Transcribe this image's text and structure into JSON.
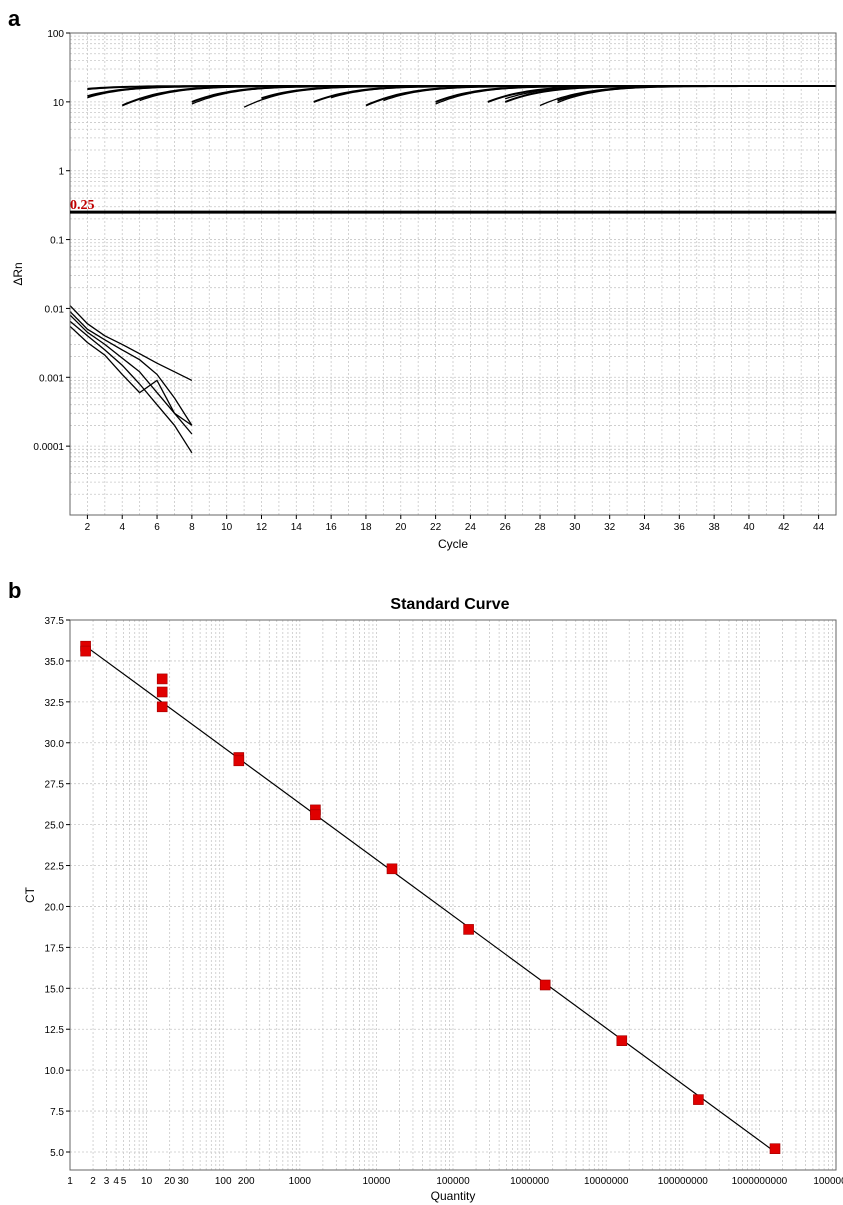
{
  "chart_data": [
    {
      "panel": "a",
      "type": "line",
      "title": "",
      "xlabel": "Cycle",
      "ylabel": "ΔRn",
      "xlim": [
        1,
        45
      ],
      "ylim": [
        1e-05,
        100
      ],
      "yscale": "log",
      "x_ticks": [
        "2",
        "4",
        "6",
        "8",
        "10",
        "12",
        "14",
        "16",
        "18",
        "20",
        "22",
        "24",
        "26",
        "28",
        "30",
        "32",
        "34",
        "36",
        "38",
        "40",
        "42",
        "44"
      ],
      "y_ticks": [
        "100",
        "10",
        "1",
        "0.1",
        "0.01",
        "0.001",
        "0.0001"
      ],
      "threshold": {
        "value": 0.25,
        "label": "0.25",
        "color": "#c00000"
      },
      "grid": true,
      "legend": "none",
      "amplification_ct": [
        5.5,
        5.8,
        8.0,
        8.3,
        11.5,
        11.8,
        15.0,
        15.3,
        18.4,
        18.7,
        22.0,
        22.3,
        25.5,
        25.8,
        29.0,
        29.3,
        32.0,
        32.5,
        33.0,
        35.5,
        35.8,
        36.1
      ]
    },
    {
      "panel": "b",
      "type": "scatter",
      "title": "Standard Curve",
      "xlabel": "Quantity",
      "ylabel": "CT",
      "xscale": "log",
      "xlim": [
        1,
        10000000000
      ],
      "ylim": [
        3.9,
        37.5
      ],
      "x_ticks": [
        "1",
        "2",
        "3",
        "4",
        "5",
        "10",
        "20",
        "30",
        "100",
        "200",
        "1000",
        "10000",
        "100000",
        "1000000",
        "10000000",
        "100000000",
        "1000000000",
        "100000"
      ],
      "y_ticks": [
        "37.5",
        "35.0",
        "32.5",
        "30.0",
        "27.5",
        "25.0",
        "22.5",
        "20.0",
        "17.5",
        "15.0",
        "12.5",
        "10.0",
        "7.5",
        "5.0"
      ],
      "grid": true,
      "legend": "none",
      "marker_color": "#e00000",
      "points": [
        {
          "x": 1.6,
          "y": 35.9
        },
        {
          "x": 1.6,
          "y": 35.6
        },
        {
          "x": 16,
          "y": 33.9
        },
        {
          "x": 16,
          "y": 33.1
        },
        {
          "x": 16,
          "y": 32.2
        },
        {
          "x": 160,
          "y": 29.1
        },
        {
          "x": 160,
          "y": 28.9
        },
        {
          "x": 1600,
          "y": 25.9
        },
        {
          "x": 1600,
          "y": 25.6
        },
        {
          "x": 16000,
          "y": 22.3
        },
        {
          "x": 160000,
          "y": 18.6
        },
        {
          "x": 1600000,
          "y": 15.2
        },
        {
          "x": 16000000,
          "y": 11.8
        },
        {
          "x": 160000000,
          "y": 8.2
        },
        {
          "x": 1600000000,
          "y": 5.2
        }
      ],
      "fit_line": {
        "x": [
          1.6,
          1600000000
        ],
        "y": [
          35.9,
          5.0
        ]
      }
    }
  ]
}
